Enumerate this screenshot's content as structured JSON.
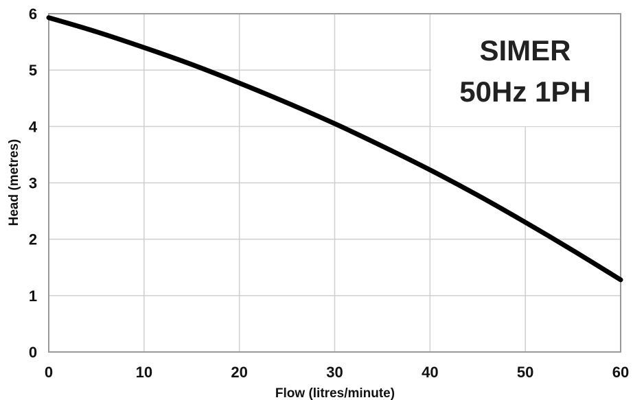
{
  "chart_data": {
    "type": "line",
    "title": "SIMER",
    "subtitle": "50Hz 1PH",
    "xlabel": "Flow (litres/minute)",
    "ylabel": "Head (metres)",
    "xlim": [
      0,
      60
    ],
    "ylim": [
      0,
      6
    ],
    "xticks": [
      0,
      10,
      20,
      30,
      40,
      50,
      60
    ],
    "yticks": [
      0,
      1,
      2,
      3,
      4,
      5,
      6
    ],
    "grid": true,
    "legend": "none",
    "series": [
      {
        "color": "#000000",
        "x": [
          0,
          5,
          10,
          15,
          20,
          25,
          30,
          35,
          40,
          45,
          50,
          55,
          60
        ],
        "y": [
          5.93,
          5.68,
          5.4,
          5.1,
          4.77,
          4.42,
          4.05,
          3.65,
          3.23,
          2.78,
          2.3,
          1.8,
          1.28
        ]
      }
    ]
  }
}
